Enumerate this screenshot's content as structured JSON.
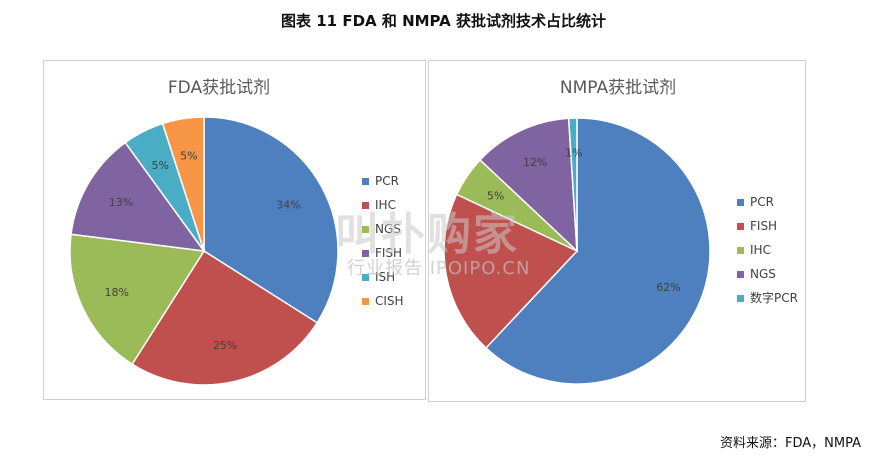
{
  "figure": {
    "title": "图表 11 FDA 和 NMPA 获批试剂技术占比统计",
    "source": "资料来源：FDA，NMPA"
  },
  "watermark": {
    "main": "叫扑购家",
    "sub": "行业报告 IPOIPO.CN"
  },
  "chart_data": [
    {
      "type": "pie",
      "title": "FDA获批试剂",
      "categories": [
        "PCR",
        "IHC",
        "NGS",
        "FISH",
        "ISH",
        "CISH"
      ],
      "values": [
        34,
        25,
        18,
        13,
        5,
        5
      ],
      "labels": [
        "34%",
        "25%",
        "18%",
        "13%",
        "5%",
        "5%"
      ],
      "colors": [
        "#4e7fbf",
        "#c0504d",
        "#9bbb59",
        "#8064a2",
        "#4bacc6",
        "#f79646"
      ],
      "legend": "right"
    },
    {
      "type": "pie",
      "title": "NMPA获批试剂",
      "categories": [
        "PCR",
        "FISH",
        "IHC",
        "NGS",
        "数字PCR"
      ],
      "values": [
        62,
        20,
        5,
        12,
        1
      ],
      "labels": [
        "62%",
        "",
        "5%",
        "12%",
        "1%"
      ],
      "colors": [
        "#4e7fbf",
        "#c0504d",
        "#9bbb59",
        "#8064a2",
        "#4bacc6"
      ],
      "legend": "right"
    }
  ]
}
